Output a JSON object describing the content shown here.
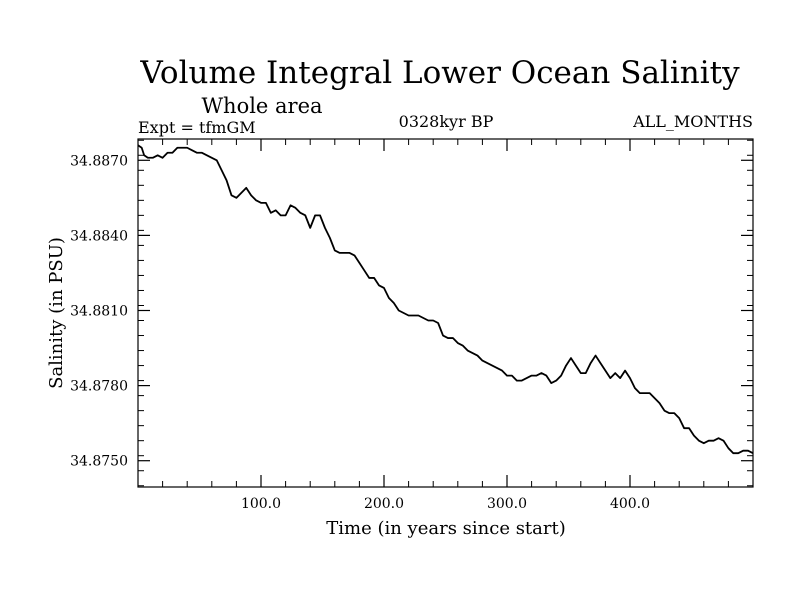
{
  "chart_data": {
    "type": "line",
    "title": "Volume Integral Lower Ocean Salinity",
    "subtitle": "Whole area",
    "annotations": {
      "left": "Expt = tfmGM",
      "center": "0328kyr BP",
      "right": "ALL_MONTHS"
    },
    "xlabel": "Time (in years since start)",
    "ylabel": "Salinity (in PSU)",
    "xlim": [
      0,
      500
    ],
    "ylim": [
      34.87395,
      34.88785
    ],
    "xticks": [
      {
        "value": 100,
        "label": "100.0"
      },
      {
        "value": 200,
        "label": "200.0"
      },
      {
        "value": 300,
        "label": "300.0"
      },
      {
        "value": 400,
        "label": "400.0"
      }
    ],
    "yticks": [
      {
        "value": 34.875,
        "label": "34.8750"
      },
      {
        "value": 34.878,
        "label": "34.8780"
      },
      {
        "value": 34.881,
        "label": "34.8810"
      },
      {
        "value": 34.884,
        "label": "34.8840"
      },
      {
        "value": 34.887,
        "label": "34.8870"
      }
    ],
    "grid": false,
    "series": [
      {
        "color": "#000000",
        "x": [
          0,
          3,
          5,
          8,
          12,
          16,
          20,
          24,
          28,
          32,
          36,
          40,
          44,
          48,
          52,
          56,
          60,
          64,
          68,
          72,
          76,
          80,
          84,
          88,
          92,
          96,
          100,
          104,
          108,
          112,
          116,
          120,
          124,
          128,
          132,
          136,
          140,
          144,
          148,
          152,
          156,
          160,
          164,
          168,
          172,
          176,
          180,
          184,
          188,
          192,
          196,
          200,
          204,
          208,
          212,
          216,
          220,
          224,
          228,
          232,
          236,
          240,
          244,
          248,
          252,
          256,
          260,
          264,
          268,
          272,
          276,
          280,
          284,
          288,
          292,
          296,
          300,
          304,
          308,
          312,
          316,
          320,
          324,
          328,
          332,
          336,
          340,
          344,
          348,
          352,
          356,
          360,
          364,
          368,
          372,
          376,
          380,
          384,
          388,
          392,
          396,
          400,
          404,
          408,
          412,
          416,
          420,
          424,
          428,
          432,
          436,
          440,
          444,
          448,
          452,
          456,
          460,
          464,
          468,
          472,
          476,
          480,
          484,
          488,
          492,
          496,
          500
        ],
        "values": [
          34.8876,
          34.8875,
          34.8872,
          34.8871,
          34.8871,
          34.8872,
          34.8871,
          34.8873,
          34.8873,
          34.8875,
          34.8875,
          34.8875,
          34.8874,
          34.8873,
          34.8873,
          34.8872,
          34.8871,
          34.887,
          34.8866,
          34.8862,
          34.8856,
          34.8855,
          34.8857,
          34.8859,
          34.8856,
          34.8854,
          34.8853,
          34.8853,
          34.8849,
          34.885,
          34.8848,
          34.8848,
          34.8852,
          34.8851,
          34.8849,
          34.8848,
          34.8843,
          34.8848,
          34.8848,
          34.8843,
          34.8839,
          34.8834,
          34.8833,
          34.8833,
          34.8833,
          34.8832,
          34.8829,
          34.8826,
          34.8823,
          34.8823,
          34.882,
          34.8819,
          34.8815,
          34.8813,
          34.881,
          34.8809,
          34.8808,
          34.8808,
          34.8808,
          34.8807,
          34.8806,
          34.8806,
          34.8805,
          34.88,
          34.8799,
          34.8799,
          34.8797,
          34.8796,
          34.8794,
          34.8793,
          34.8792,
          34.879,
          34.8789,
          34.8788,
          34.8787,
          34.8786,
          34.8784,
          34.8784,
          34.8782,
          34.8782,
          34.8783,
          34.8784,
          34.8784,
          34.8785,
          34.8784,
          34.8781,
          34.8782,
          34.8784,
          34.8788,
          34.8791,
          34.8788,
          34.8785,
          34.8785,
          34.8789,
          34.8792,
          34.8789,
          34.8786,
          34.8783,
          34.8785,
          34.8783,
          34.8786,
          34.8783,
          34.8779,
          34.8777,
          34.8777,
          34.8777,
          34.8775,
          34.8773,
          34.877,
          34.8769,
          34.8769,
          34.8767,
          34.8763,
          34.8763,
          34.876,
          34.8758,
          34.8757,
          34.8758,
          34.8758,
          34.8759,
          34.8758,
          34.8755,
          34.8753,
          34.8753,
          34.8754,
          34.8754,
          34.8753
        ]
      }
    ]
  }
}
